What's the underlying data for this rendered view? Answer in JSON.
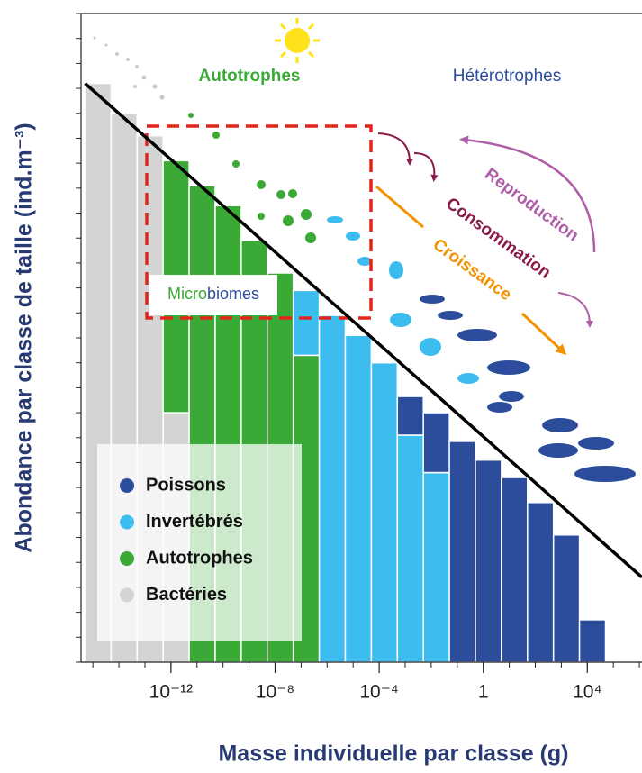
{
  "chart_data": {
    "type": "histogram",
    "x_label": "Masse individuelle par classe (g)",
    "y_label": "Abondance par classe de taille (ind.m⁻³)",
    "x_log": true,
    "xlim": [
      3.5e-16,
      1260000.0
    ],
    "ylim": [
      0,
      26
    ],
    "xticks": [
      {
        "value": 1e-12,
        "label": "10⁻¹²"
      },
      {
        "value": 1e-08,
        "label": "10⁻⁸"
      },
      {
        "value": 0.0001,
        "label": "10⁻⁴"
      },
      1,
      {
        "value": 10000,
        "label": "10⁴"
      }
    ],
    "bins": [
      5e-16,
      5e-15,
      5e-14,
      5e-13,
      5e-12,
      5e-11,
      5e-10,
      5e-09,
      5e-08,
      5e-07,
      5e-06,
      5e-05,
      0.0005,
      0.005,
      0.05,
      0.5,
      5,
      50,
      500,
      5000,
      50000
    ],
    "stacked": true,
    "legend": "lower left",
    "series": [
      {
        "name": "Bactéries",
        "color": "#d4d4d4",
        "values": [
          23.2,
          22.0,
          21.1,
          10,
          null,
          null,
          null,
          null,
          null,
          null,
          null,
          null,
          null,
          null,
          null,
          null,
          null,
          null,
          null,
          null
        ]
      },
      {
        "name": "Autotrophes",
        "color": "#3aa935",
        "values": [
          null,
          null,
          null,
          10.1,
          19.1,
          18.3,
          16.9,
          15.6,
          12.3,
          null,
          null,
          null,
          null,
          null,
          null,
          null,
          null,
          null,
          null,
          null
        ]
      },
      {
        "name": "Invertébrés",
        "color": "#3dbdef",
        "values": [
          null,
          null,
          null,
          null,
          null,
          null,
          null,
          null,
          2.6,
          13.9,
          13.1,
          12.0,
          9.1,
          7.6,
          null,
          null,
          null,
          null,
          null,
          null
        ]
      },
      {
        "name": "Poissons",
        "color": "#2c4c9c",
        "values": [
          null,
          null,
          null,
          null,
          null,
          null,
          null,
          null,
          null,
          null,
          null,
          null,
          1.55,
          2.4,
          8.85,
          8.1,
          7.4,
          6.4,
          5.1,
          1.7
        ]
      }
    ],
    "trend_line": {
      "x": [
        5e-16,
        1260000.0
      ],
      "y": [
        23.2,
        3.4
      ]
    },
    "annotations": {
      "autotrophes": "Autotrophes",
      "heterotrophes": "Hétérotrophes",
      "microbiomes": [
        "Micro",
        "biomes"
      ],
      "reproduction": "Reproduction",
      "consommation": "Consommation",
      "croissance": "Croissance"
    }
  }
}
